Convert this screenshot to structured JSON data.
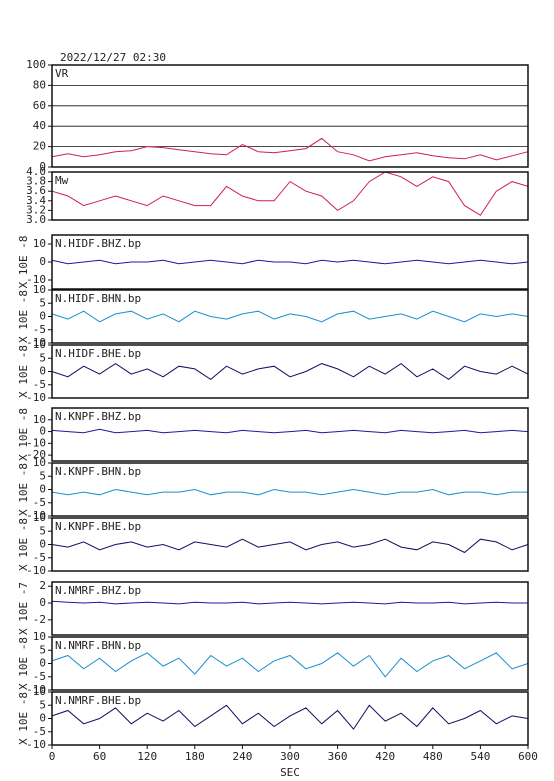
{
  "chart_data": [
    {
      "type": "line",
      "title": "2022/12/27 02:30",
      "label": "VR",
      "color": "#d0204a",
      "grid": true,
      "xlim": [
        0,
        600
      ],
      "ylim": [
        0,
        100
      ],
      "yticks": [
        0,
        20,
        40,
        60,
        80,
        100
      ],
      "x": [
        0,
        20,
        40,
        60,
        80,
        100,
        120,
        140,
        160,
        180,
        200,
        220,
        240,
        260,
        280,
        300,
        320,
        340,
        360,
        380,
        400,
        420,
        440,
        460,
        480,
        500,
        520,
        540,
        560,
        580,
        600
      ],
      "values": [
        10,
        13,
        10,
        12,
        15,
        16,
        20,
        19,
        17,
        15,
        13,
        12,
        22,
        15,
        14,
        16,
        18,
        28,
        15,
        12,
        6,
        10,
        12,
        14,
        11,
        9,
        8,
        12,
        7,
        11,
        15
      ]
    },
    {
      "type": "line",
      "label": "Mw",
      "color": "#d0204a",
      "xlim": [
        0,
        600
      ],
      "ylim": [
        3,
        4
      ],
      "yticks": [
        {
          "value": 3,
          "label": "3.0"
        },
        3.2,
        3.4,
        3.6,
        3.8,
        {
          "value": 4,
          "label": "4.0"
        }
      ],
      "x": [
        0,
        20,
        40,
        60,
        80,
        100,
        120,
        140,
        160,
        180,
        200,
        220,
        240,
        260,
        280,
        300,
        320,
        340,
        360,
        380,
        400,
        420,
        440,
        460,
        480,
        500,
        520,
        540,
        560,
        580,
        600
      ],
      "values": [
        3.6,
        3.5,
        3.3,
        3.4,
        3.5,
        3.4,
        3.3,
        3.5,
        3.4,
        3.3,
        3.3,
        3.7,
        3.5,
        3.4,
        3.4,
        3.8,
        3.6,
        3.5,
        3.2,
        3.4,
        3.8,
        4.0,
        3.9,
        3.7,
        3.9,
        3.8,
        3.3,
        3.1,
        3.6,
        3.8,
        3.7
      ]
    },
    {
      "type": "line",
      "label": "N.HIDF.BHZ.bp",
      "ylabel": "X 10E -8",
      "color": "#1a1aa0",
      "xlim": [
        0,
        600
      ],
      "ylim": [
        -15,
        15
      ],
      "yticks": [
        -10,
        0,
        10
      ],
      "x": [
        0,
        20,
        40,
        60,
        80,
        100,
        120,
        140,
        160,
        180,
        200,
        220,
        240,
        260,
        280,
        300,
        320,
        340,
        360,
        380,
        400,
        420,
        440,
        460,
        480,
        500,
        520,
        540,
        560,
        580,
        600
      ],
      "values": [
        1,
        -1,
        0,
        1,
        -1,
        0,
        0,
        1,
        -1,
        0,
        1,
        0,
        -1,
        1,
        0,
        0,
        -1,
        1,
        0,
        1,
        0,
        -1,
        0,
        1,
        0,
        -1,
        0,
        1,
        0,
        -1,
        0
      ]
    },
    {
      "type": "line",
      "label": "N.HIDF.BHN.bp",
      "ylabel": "X 10E -8",
      "color": "#1a8fd0",
      "xlim": [
        0,
        600
      ],
      "ylim": [
        -10,
        10
      ],
      "yticks": [
        -10,
        -5,
        0,
        5,
        10
      ],
      "x": [
        0,
        20,
        40,
        60,
        80,
        100,
        120,
        140,
        160,
        180,
        200,
        220,
        240,
        260,
        280,
        300,
        320,
        340,
        360,
        380,
        400,
        420,
        440,
        460,
        480,
        500,
        520,
        540,
        560,
        580,
        600
      ],
      "values": [
        1,
        -1,
        2,
        -2,
        1,
        2,
        -1,
        1,
        -2,
        2,
        0,
        -1,
        1,
        2,
        -1,
        1,
        0,
        -2,
        1,
        2,
        -1,
        0,
        1,
        -1,
        2,
        0,
        -2,
        1,
        0,
        1,
        0
      ]
    },
    {
      "type": "line",
      "label": "N.HIDF.BHE.bp",
      "ylabel": "X 10E -8",
      "color": "#101060",
      "xlim": [
        0,
        600
      ],
      "ylim": [
        -10,
        10
      ],
      "yticks": [
        -10,
        -5,
        0,
        5,
        10
      ],
      "x": [
        0,
        20,
        40,
        60,
        80,
        100,
        120,
        140,
        160,
        180,
        200,
        220,
        240,
        260,
        280,
        300,
        320,
        340,
        360,
        380,
        400,
        420,
        440,
        460,
        480,
        500,
        520,
        540,
        560,
        580,
        600
      ],
      "values": [
        0,
        -2,
        2,
        -1,
        3,
        -1,
        1,
        -2,
        2,
        1,
        -3,
        2,
        -1,
        1,
        2,
        -2,
        0,
        3,
        1,
        -2,
        2,
        -1,
        3,
        -2,
        1,
        -3,
        2,
        0,
        -1,
        2,
        -1
      ]
    },
    {
      "type": "line",
      "label": "N.KNPF.BHZ.bp",
      "ylabel": "X 10E -8",
      "color": "#1a1aa0",
      "xlim": [
        0,
        600
      ],
      "ylim": [
        -25,
        20
      ],
      "yticks": [
        -20,
        -10,
        0,
        10
      ],
      "x": [
        0,
        20,
        40,
        60,
        80,
        100,
        120,
        140,
        160,
        180,
        200,
        220,
        240,
        260,
        280,
        300,
        320,
        340,
        360,
        380,
        400,
        420,
        440,
        460,
        480,
        500,
        520,
        540,
        560,
        580,
        600
      ],
      "values": [
        1,
        0,
        -1,
        2,
        -1,
        0,
        1,
        -1,
        0,
        1,
        0,
        -1,
        1,
        0,
        -1,
        0,
        1,
        -1,
        0,
        1,
        0,
        -1,
        1,
        0,
        -1,
        0,
        1,
        -1,
        0,
        1,
        0
      ]
    },
    {
      "type": "line",
      "label": "N.KNPF.BHN.bp",
      "ylabel": "X 10E -8",
      "color": "#1a8fd0",
      "xlim": [
        0,
        600
      ],
      "ylim": [
        -10,
        10
      ],
      "yticks": [
        -10,
        -5,
        0,
        5,
        10
      ],
      "x": [
        0,
        20,
        40,
        60,
        80,
        100,
        120,
        140,
        160,
        180,
        200,
        220,
        240,
        260,
        280,
        300,
        320,
        340,
        360,
        380,
        400,
        420,
        440,
        460,
        480,
        500,
        520,
        540,
        560,
        580,
        600
      ],
      "values": [
        -1,
        -2,
        -1,
        -2,
        0,
        -1,
        -2,
        -1,
        -1,
        0,
        -2,
        -1,
        -1,
        -2,
        0,
        -1,
        -1,
        -2,
        -1,
        0,
        -1,
        -2,
        -1,
        -1,
        0,
        -2,
        -1,
        -1,
        -2,
        -1,
        -1
      ]
    },
    {
      "type": "line",
      "label": "N.KNPF.BHE.bp",
      "ylabel": "X 10E -8",
      "color": "#101060",
      "xlim": [
        0,
        600
      ],
      "ylim": [
        -10,
        10
      ],
      "yticks": [
        -10,
        -5,
        0,
        5,
        10
      ],
      "x": [
        0,
        20,
        40,
        60,
        80,
        100,
        120,
        140,
        160,
        180,
        200,
        220,
        240,
        260,
        280,
        300,
        320,
        340,
        360,
        380,
        400,
        420,
        440,
        460,
        480,
        500,
        520,
        540,
        560,
        580,
        600
      ],
      "values": [
        0,
        -1,
        1,
        -2,
        0,
        1,
        -1,
        0,
        -2,
        1,
        0,
        -1,
        2,
        -1,
        0,
        1,
        -2,
        0,
        1,
        -1,
        0,
        2,
        -1,
        -2,
        1,
        0,
        -3,
        2,
        1,
        -2,
        0
      ]
    },
    {
      "type": "line",
      "label": "N.NMRF.BHZ.bp",
      "ylabel": "X 10E -7",
      "color": "#1a1aa0",
      "xlim": [
        0,
        600
      ],
      "ylim": [
        -3.8,
        2.5
      ],
      "yticks": [
        -2,
        0,
        2
      ],
      "x": [
        0,
        20,
        40,
        60,
        80,
        100,
        120,
        140,
        160,
        180,
        200,
        220,
        240,
        260,
        280,
        300,
        320,
        340,
        360,
        380,
        400,
        420,
        440,
        460,
        480,
        500,
        520,
        540,
        560,
        580,
        600
      ],
      "values": [
        0.2,
        0.1,
        0,
        0.1,
        -0.1,
        0,
        0.1,
        0,
        -0.1,
        0.1,
        0,
        0,
        0.1,
        -0.1,
        0,
        0.1,
        0,
        -0.1,
        0,
        0.1,
        0,
        -0.1,
        0.1,
        0,
        0,
        0.1,
        -0.1,
        0,
        0.1,
        0,
        0
      ]
    },
    {
      "type": "line",
      "label": "N.NMRF.BHN.bp",
      "ylabel": "X 10E -8",
      "color": "#1a8fd0",
      "xlim": [
        0,
        600
      ],
      "ylim": [
        -10,
        10
      ],
      "yticks": [
        -10,
        -5,
        0,
        5,
        10
      ],
      "x": [
        0,
        20,
        40,
        60,
        80,
        100,
        120,
        140,
        160,
        180,
        200,
        220,
        240,
        260,
        280,
        300,
        320,
        340,
        360,
        380,
        400,
        420,
        440,
        460,
        480,
        500,
        520,
        540,
        560,
        580,
        600
      ],
      "values": [
        1,
        3,
        -2,
        2,
        -3,
        1,
        4,
        -1,
        2,
        -4,
        3,
        -1,
        2,
        -3,
        1,
        3,
        -2,
        0,
        4,
        -1,
        3,
        -5,
        2,
        -3,
        1,
        3,
        -2,
        1,
        4,
        -2,
        0
      ]
    },
    {
      "type": "line",
      "label": "N.NMRF.BHE.bp",
      "ylabel": "X 10E -8",
      "xlabel": "SEC",
      "color": "#101060",
      "xlim": [
        0,
        600
      ],
      "xticks": [
        0,
        60,
        120,
        180,
        240,
        300,
        360,
        420,
        480,
        540,
        600
      ],
      "ylim": [
        -10,
        10
      ],
      "yticks": [
        -10,
        -5,
        0,
        5,
        10
      ],
      "x": [
        0,
        20,
        40,
        60,
        80,
        100,
        120,
        140,
        160,
        180,
        200,
        220,
        240,
        260,
        280,
        300,
        320,
        340,
        360,
        380,
        400,
        420,
        440,
        460,
        480,
        500,
        520,
        540,
        560,
        580,
        600
      ],
      "values": [
        1,
        3,
        -2,
        0,
        4,
        -2,
        2,
        -1,
        3,
        -3,
        1,
        5,
        -2,
        2,
        -3,
        1,
        4,
        -2,
        3,
        -4,
        5,
        -1,
        2,
        -3,
        4,
        -2,
        0,
        3,
        -2,
        1,
        0
      ]
    }
  ]
}
